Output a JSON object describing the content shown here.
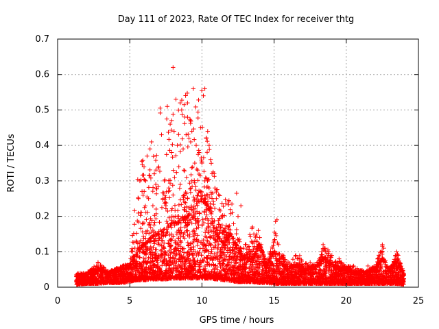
{
  "chart_data": {
    "type": "scatter",
    "title": "Day 111 of 2023, Rate Of TEC Index for receiver thtg",
    "xlabel": "GPS time / hours",
    "ylabel": "ROTI / TECUs",
    "xlim": [
      0,
      25
    ],
    "ylim": [
      0,
      0.7
    ],
    "x_ticks": [
      "0",
      "5",
      "10",
      "15",
      "20",
      "25"
    ],
    "y_ticks": [
      "0",
      "0.1",
      "0.2",
      "0.3",
      "0.4",
      "0.5",
      "0.6",
      "0.7"
    ],
    "grid": true,
    "legend": "none",
    "marker": "plus",
    "series_color": "#ff0000",
    "x_range_observed": [
      1.3,
      24.0
    ],
    "envelope": {
      "x": [
        1.3,
        2.0,
        2.8,
        3.5,
        4.5,
        5.0,
        5.5,
        6.0,
        6.5,
        7.0,
        7.5,
        8.0,
        8.5,
        9.0,
        9.5,
        10.0,
        10.5,
        11.0,
        11.5,
        12.0,
        12.5,
        13.0,
        13.5,
        14.0,
        14.5,
        15.0,
        15.3,
        16.0,
        16.5,
        17.0,
        17.5,
        18.0,
        18.5,
        19.0,
        19.5,
        20.0,
        20.5,
        21.0,
        21.5,
        22.0,
        22.5,
        23.0,
        23.5,
        24.0
      ],
      "baseline": [
        0.015,
        0.02,
        0.02,
        0.025,
        0.025,
        0.03,
        0.04,
        0.04,
        0.045,
        0.045,
        0.045,
        0.05,
        0.05,
        0.05,
        0.05,
        0.05,
        0.05,
        0.045,
        0.04,
        0.035,
        0.03,
        0.03,
        0.03,
        0.025,
        0.025,
        0.02,
        0.02,
        0.02,
        0.02,
        0.02,
        0.02,
        0.02,
        0.02,
        0.02,
        0.02,
        0.02,
        0.02,
        0.02,
        0.02,
        0.02,
        0.02,
        0.02,
        0.02,
        0.015
      ],
      "dense_top": [
        0.03,
        0.035,
        0.05,
        0.04,
        0.05,
        0.06,
        0.1,
        0.12,
        0.14,
        0.15,
        0.16,
        0.18,
        0.18,
        0.2,
        0.22,
        0.25,
        0.22,
        0.15,
        0.12,
        0.15,
        0.1,
        0.08,
        0.08,
        0.12,
        0.06,
        0.1,
        0.07,
        0.05,
        0.06,
        0.05,
        0.05,
        0.06,
        0.08,
        0.06,
        0.05,
        0.05,
        0.04,
        0.04,
        0.04,
        0.05,
        0.08,
        0.04,
        0.08,
        0.03
      ],
      "max": [
        0.04,
        0.04,
        0.07,
        0.045,
        0.06,
        0.07,
        0.3,
        0.41,
        0.32,
        0.51,
        0.47,
        0.62,
        0.52,
        0.56,
        0.5,
        0.56,
        0.4,
        0.3,
        0.25,
        0.26,
        0.14,
        0.12,
        0.17,
        0.12,
        0.07,
        0.19,
        0.12,
        0.07,
        0.1,
        0.08,
        0.06,
        0.07,
        0.12,
        0.09,
        0.08,
        0.06,
        0.06,
        0.05,
        0.05,
        0.06,
        0.12,
        0.05,
        0.1,
        0.04
      ]
    },
    "points": [
      [
        8.0,
        0.62
      ],
      [
        7.6,
        0.51
      ],
      [
        9.4,
        0.56
      ],
      [
        10.2,
        0.56
      ],
      [
        10.1,
        0.54
      ],
      [
        8.2,
        0.53
      ],
      [
        9.0,
        0.52
      ],
      [
        7.1,
        0.505
      ],
      [
        8.6,
        0.5
      ],
      [
        8.8,
        0.48
      ],
      [
        9.2,
        0.47
      ],
      [
        7.9,
        0.47
      ],
      [
        7.8,
        0.46
      ],
      [
        9.9,
        0.45
      ],
      [
        10.4,
        0.44
      ],
      [
        9.3,
        0.44
      ],
      [
        8.9,
        0.43
      ],
      [
        7.2,
        0.43
      ],
      [
        10.3,
        0.42
      ],
      [
        9.1,
        0.42
      ],
      [
        6.5,
        0.41
      ],
      [
        8.3,
        0.4
      ],
      [
        9.6,
        0.4
      ],
      [
        10.5,
        0.4
      ],
      [
        6.4,
        0.39
      ],
      [
        8.7,
        0.39
      ],
      [
        9.8,
        0.38
      ],
      [
        7.9,
        0.38
      ],
      [
        6.2,
        0.37
      ],
      [
        10.6,
        0.36
      ],
      [
        9.5,
        0.35
      ],
      [
        10.0,
        0.35
      ],
      [
        8.4,
        0.34
      ],
      [
        7.0,
        0.34
      ],
      [
        9.7,
        0.33
      ],
      [
        6.7,
        0.32
      ],
      [
        10.7,
        0.32
      ],
      [
        8.1,
        0.31
      ],
      [
        6.1,
        0.3
      ],
      [
        7.4,
        0.3
      ],
      [
        9.3,
        0.3
      ],
      [
        10.2,
        0.3
      ],
      [
        5.7,
        0.3
      ],
      [
        6.8,
        0.29
      ],
      [
        8.5,
        0.29
      ],
      [
        10.9,
        0.28
      ],
      [
        7.7,
        0.28
      ],
      [
        6.0,
        0.27
      ],
      [
        12.4,
        0.265
      ],
      [
        9.9,
        0.27
      ],
      [
        8.0,
        0.26
      ],
      [
        10.4,
        0.26
      ],
      [
        6.3,
        0.25
      ],
      [
        7.3,
        0.25
      ],
      [
        9.0,
        0.25
      ],
      [
        11.0,
        0.25
      ],
      [
        5.6,
        0.25
      ],
      [
        8.8,
        0.24
      ],
      [
        10.1,
        0.24
      ],
      [
        12.7,
        0.23
      ],
      [
        6.6,
        0.23
      ],
      [
        7.5,
        0.23
      ],
      [
        11.2,
        0.22
      ],
      [
        9.4,
        0.22
      ],
      [
        12.1,
        0.21
      ],
      [
        12.5,
        0.2
      ],
      [
        5.8,
        0.21
      ],
      [
        15.2,
        0.19
      ],
      [
        15.1,
        0.185
      ],
      [
        13.5,
        0.17
      ],
      [
        13.6,
        0.15
      ],
      [
        14.0,
        0.14
      ],
      [
        14.1,
        0.12
      ],
      [
        15.0,
        0.13
      ],
      [
        15.3,
        0.12
      ],
      [
        16.5,
        0.09
      ],
      [
        16.6,
        0.08
      ],
      [
        17.5,
        0.07
      ],
      [
        18.4,
        0.12
      ],
      [
        18.5,
        0.11
      ],
      [
        18.3,
        0.1
      ],
      [
        19.0,
        0.09
      ],
      [
        19.5,
        0.08
      ],
      [
        22.5,
        0.12
      ],
      [
        22.6,
        0.11
      ],
      [
        22.4,
        0.1
      ],
      [
        23.5,
        0.1
      ],
      [
        23.6,
        0.09
      ],
      [
        23.4,
        0.09
      ],
      [
        2.8,
        0.07
      ],
      [
        2.7,
        0.06
      ],
      [
        4.5,
        0.06
      ],
      [
        4.6,
        0.055
      ],
      [
        21.5,
        0.06
      ],
      [
        21.6,
        0.05
      ],
      [
        20.5,
        0.06
      ],
      [
        17.0,
        0.06
      ],
      [
        14.5,
        0.07
      ],
      [
        13.0,
        0.12
      ],
      [
        12.9,
        0.11
      ],
      [
        11.5,
        0.16
      ],
      [
        11.8,
        0.17
      ],
      [
        13.9,
        0.16
      ],
      [
        13.8,
        0.15
      ]
    ]
  }
}
